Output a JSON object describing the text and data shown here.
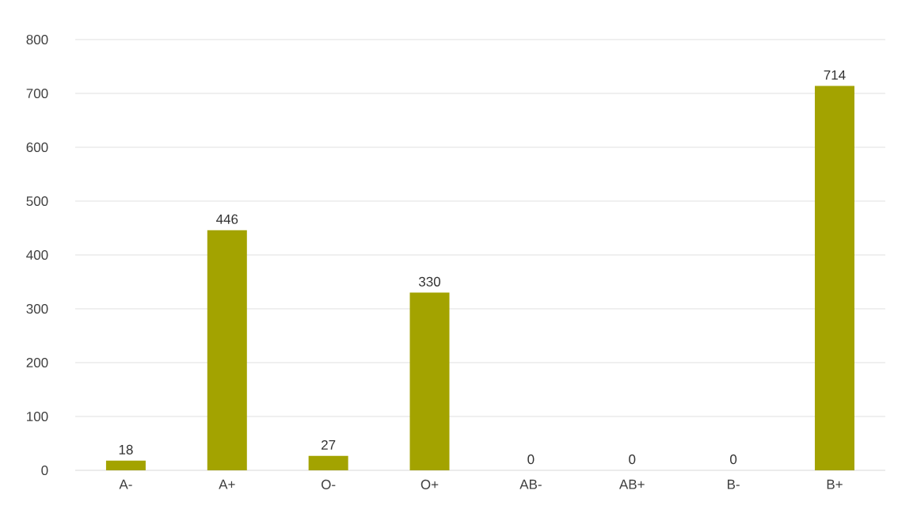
{
  "chart_data": {
    "type": "bar",
    "categories": [
      "A-",
      "A+",
      "O-",
      "O+",
      "AB-",
      "AB+",
      "B-",
      "B+"
    ],
    "values": [
      18,
      446,
      27,
      330,
      0,
      0,
      0,
      714
    ],
    "color": "#a3a300",
    "ylim": [
      0,
      800
    ],
    "yticks": [
      0,
      100,
      200,
      300,
      400,
      500,
      600,
      700,
      800
    ],
    "grid": "y",
    "data_labels": true
  }
}
